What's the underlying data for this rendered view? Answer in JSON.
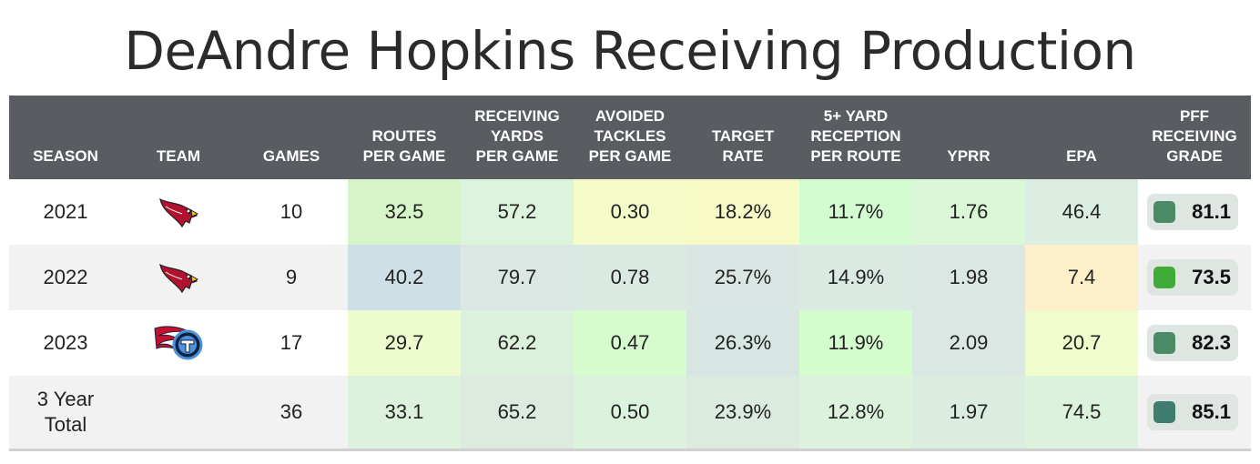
{
  "title": "DeAndre Hopkins Receiving Production",
  "chart_data": {
    "type": "table",
    "columns": [
      [
        "SEASON"
      ],
      [
        "TEAM"
      ],
      [
        "GAMES"
      ],
      [
        "ROUTES",
        "PER GAME"
      ],
      [
        "RECEIVING",
        "YARDS",
        "PER GAME"
      ],
      [
        "AVOIDED",
        "TACKLES",
        "PER GAME"
      ],
      [
        "TARGET",
        "RATE"
      ],
      [
        "5+ YARD",
        "RECEPTION",
        "PER ROUTE"
      ],
      [
        "YPRR"
      ],
      [
        "EPA"
      ],
      [
        "PFF",
        "RECEIVING",
        "GRADE"
      ]
    ],
    "rows": [
      {
        "season": [
          "2021"
        ],
        "team_logo": "cardinals-logo",
        "values": [
          "10",
          "32.5",
          "57.2",
          "0.30",
          "18.2%",
          "11.7%",
          "1.76",
          "46.4"
        ],
        "colors": [
          "",
          "#d6f5c8",
          "#dcf3dc",
          "#f4fbc9",
          "#f7fac5",
          "#d3fcd0",
          "#daf7d6",
          "#dbeee1"
        ],
        "grade": "81.1",
        "grade_color": "#4a8a66"
      },
      {
        "season": [
          "2022"
        ],
        "team_logo": "cardinals-logo",
        "values": [
          "9",
          "40.2",
          "79.7",
          "0.78",
          "25.7%",
          "14.9%",
          "1.98",
          "7.4"
        ],
        "colors": [
          "",
          "#cfdfe6",
          "#dbe7e3",
          "#dae9e2",
          "#dae6e4",
          "#dbe9e3",
          "#dbe7e3",
          "#fcefca"
        ],
        "grade": "73.5",
        "grade_color": "#3fac3a"
      },
      {
        "season": [
          "2023"
        ],
        "team_logo": "titans-logo",
        "values": [
          "17",
          "29.7",
          "62.2",
          "0.47",
          "26.3%",
          "11.9%",
          "2.09",
          "20.7"
        ],
        "colors": [
          "",
          "#eefccd",
          "#dbf1dc",
          "#d5fbcf",
          "#d8e6e3",
          "#d4fccc",
          "#dae7e3",
          "#f0fccb"
        ],
        "grade": "82.3",
        "grade_color": "#4a8a66"
      },
      {
        "season": [
          "3 Year",
          "Total"
        ],
        "team_logo": "",
        "values": [
          "36",
          "33.1",
          "65.2",
          "0.50",
          "23.9%",
          "12.8%",
          "1.97",
          "74.5"
        ],
        "colors": [
          "",
          "#dcf2dd",
          "#dceadf",
          "#dbf2dd",
          "#dbebdf",
          "#dbf2dd",
          "#dbece0",
          "#dbf2dd"
        ],
        "grade": "85.1",
        "grade_color": "#3f7c6e"
      }
    ]
  }
}
